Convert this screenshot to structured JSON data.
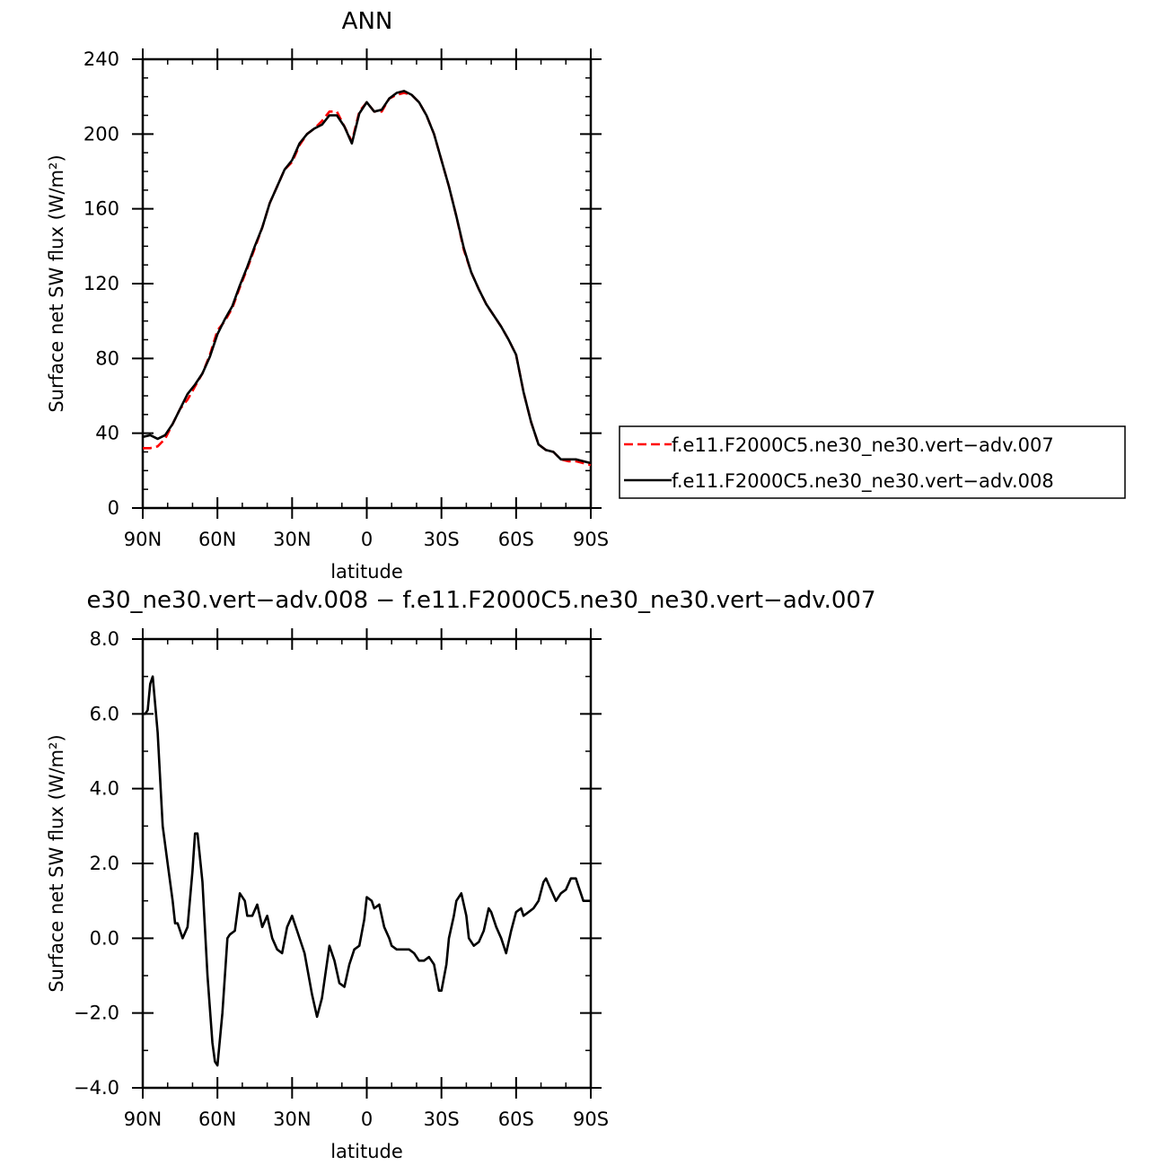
{
  "chart_data": [
    {
      "type": "line",
      "title": "ANN",
      "xlabel": "latitude",
      "ylabel": "Surface net SW flux (W/m²)",
      "xlim": [
        90,
        -90
      ],
      "ylim": [
        0,
        240
      ],
      "xticks": [
        {
          "value": 90,
          "label": "90N"
        },
        {
          "value": 60,
          "label": "60N"
        },
        {
          "value": 30,
          "label": "30N"
        },
        {
          "value": 0,
          "label": "0"
        },
        {
          "value": -30,
          "label": "30S"
        },
        {
          "value": -60,
          "label": "60S"
        },
        {
          "value": -90,
          "label": "90S"
        }
      ],
      "yticks": [
        {
          "value": 0,
          "label": "0"
        },
        {
          "value": 40,
          "label": "40"
        },
        {
          "value": 80,
          "label": "80"
        },
        {
          "value": 120,
          "label": "120"
        },
        {
          "value": 160,
          "label": "160"
        },
        {
          "value": 200,
          "label": "200"
        },
        {
          "value": 240,
          "label": "240"
        }
      ],
      "legend_position": "right",
      "series": [
        {
          "name": "f.e11.F2000C5.ne30_ne30.vert−adv.007",
          "color": "#ff0000",
          "dash": "dashed",
          "x": [
            90,
            87,
            84,
            81,
            78,
            75,
            72,
            69,
            66,
            63,
            60,
            57,
            54,
            51,
            48,
            45,
            42,
            39,
            36,
            33,
            30,
            27,
            24,
            21,
            18,
            15,
            12,
            9,
            6,
            3,
            0,
            -3,
            -6,
            -9,
            -12,
            -15,
            -18,
            -21,
            -24,
            -27,
            -30,
            -33,
            -36,
            -39,
            -42,
            -45,
            -48,
            -51,
            -54,
            -57,
            -60,
            -63,
            -66,
            -69,
            -72,
            -75,
            -78,
            -81,
            -84,
            -87,
            -90
          ],
          "y": [
            32,
            32,
            33,
            37,
            45,
            53,
            58,
            65,
            72,
            82,
            95,
            100,
            107,
            118,
            128,
            139,
            150,
            163,
            172,
            181,
            185,
            194,
            200,
            203,
            207,
            212,
            212,
            204,
            196,
            212,
            217,
            212,
            212,
            219,
            221,
            222,
            221,
            217,
            210,
            200,
            186,
            172,
            156,
            138,
            126,
            117,
            109,
            103,
            97,
            90,
            82,
            62,
            46,
            34,
            31,
            30,
            26,
            25,
            25,
            24,
            23
          ]
        },
        {
          "name": "f.e11.F2000C5.ne30_ne30.vert−adv.008",
          "color": "#000000",
          "dash": "solid",
          "x": [
            90,
            87,
            84,
            81,
            78,
            75,
            72,
            69,
            66,
            63,
            60,
            57,
            54,
            51,
            48,
            45,
            42,
            39,
            36,
            33,
            30,
            27,
            24,
            21,
            18,
            15,
            12,
            9,
            6,
            3,
            0,
            -3,
            -6,
            -9,
            -12,
            -15,
            -18,
            -21,
            -24,
            -27,
            -30,
            -33,
            -36,
            -39,
            -42,
            -45,
            -48,
            -51,
            -54,
            -57,
            -60,
            -63,
            -66,
            -69,
            -72,
            -75,
            -78,
            -81,
            -84,
            -87,
            -90
          ],
          "y": [
            38,
            39,
            37,
            39,
            45,
            53,
            61,
            66,
            72,
            81,
            93,
            101,
            108,
            119,
            129,
            140,
            150,
            163,
            172,
            181,
            186,
            195,
            200,
            203,
            205,
            210,
            210,
            204,
            195,
            211,
            217,
            212,
            213,
            219,
            222,
            223,
            221,
            217,
            210,
            200,
            186,
            172,
            156,
            139,
            126,
            117,
            109,
            103,
            97,
            90,
            82,
            62,
            46,
            34,
            31,
            30,
            26,
            26,
            26,
            25,
            24
          ]
        }
      ]
    },
    {
      "type": "line",
      "title": "e30_ne30.vert−adv.008 − f.e11.F2000C5.ne30_ne30.vert−adv.007",
      "xlabel": "latitude",
      "ylabel": "Surface net SW flux (W/m²)",
      "xlim": [
        90,
        -90
      ],
      "ylim": [
        -4,
        8
      ],
      "xticks": [
        {
          "value": 90,
          "label": "90N"
        },
        {
          "value": 60,
          "label": "60N"
        },
        {
          "value": 30,
          "label": "30N"
        },
        {
          "value": 0,
          "label": "0"
        },
        {
          "value": -30,
          "label": "30S"
        },
        {
          "value": -60,
          "label": "60S"
        },
        {
          "value": -90,
          "label": "90S"
        }
      ],
      "yticks": [
        {
          "value": -4,
          "label": "−4.0"
        },
        {
          "value": -2,
          "label": "−2.0"
        },
        {
          "value": 0,
          "label": "0.0"
        },
        {
          "value": 2,
          "label": "2.0"
        },
        {
          "value": 4,
          "label": "4.0"
        },
        {
          "value": 6,
          "label": "6.0"
        },
        {
          "value": 8,
          "label": "8.0"
        }
      ],
      "series": [
        {
          "color": "#000000",
          "dash": "solid",
          "x": [
            90,
            89,
            88,
            87,
            86,
            84,
            82,
            80,
            78,
            77,
            76,
            74,
            72,
            70,
            69,
            68,
            66,
            64,
            62,
            61,
            60,
            58,
            56,
            55,
            53,
            51,
            49,
            48,
            46,
            44,
            42,
            40,
            38,
            36,
            34,
            32,
            30,
            28,
            25,
            22,
            20,
            18,
            15,
            13,
            11,
            9,
            7,
            5,
            3,
            1,
            0,
            -2,
            -3,
            -5,
            -7,
            -9,
            -10,
            -12,
            -13,
            -15,
            -17,
            -19,
            -21,
            -23,
            -25,
            -27,
            -29,
            -30,
            -32,
            -33,
            -35,
            -36,
            -38,
            -40,
            -41,
            -43,
            -45,
            -47,
            -49,
            -50,
            -52,
            -54,
            -56,
            -58,
            -60,
            -62,
            -63,
            -65,
            -67,
            -69,
            -71,
            -72,
            -74,
            -76,
            -78,
            -80,
            -82,
            -84,
            -85,
            -86,
            -87,
            -88,
            -89,
            -90
          ],
          "y": [
            6.0,
            6.0,
            6.1,
            6.8,
            7.0,
            5.5,
            3.0,
            2.0,
            1.0,
            0.4,
            0.4,
            0.0,
            0.3,
            1.8,
            2.8,
            2.8,
            1.5,
            -1.0,
            -2.8,
            -3.3,
            -3.4,
            -2.0,
            0.0,
            0.1,
            0.2,
            1.2,
            1.0,
            0.6,
            0.6,
            0.9,
            0.3,
            0.6,
            0.0,
            -0.3,
            -0.4,
            0.3,
            0.6,
            0.2,
            -0.4,
            -1.5,
            -2.1,
            -1.6,
            -0.2,
            -0.6,
            -1.2,
            -1.3,
            -0.7,
            -0.3,
            -0.2,
            0.5,
            1.1,
            1.0,
            0.8,
            0.9,
            0.3,
            0.0,
            -0.2,
            -0.3,
            -0.3,
            -0.3,
            -0.3,
            -0.4,
            -0.6,
            -0.6,
            -0.5,
            -0.7,
            -1.4,
            -1.4,
            -0.7,
            0.0,
            0.6,
            1.0,
            1.2,
            0.6,
            0.0,
            -0.2,
            -0.1,
            0.2,
            0.8,
            0.7,
            0.3,
            0.0,
            -0.4,
            0.2,
            0.7,
            0.8,
            0.6,
            0.7,
            0.8,
            1.0,
            1.5,
            1.6,
            1.3,
            1.0,
            1.2,
            1.3,
            1.6,
            1.6,
            1.4,
            1.2,
            1.0,
            1.0,
            1.0,
            1.0
          ]
        }
      ]
    }
  ]
}
